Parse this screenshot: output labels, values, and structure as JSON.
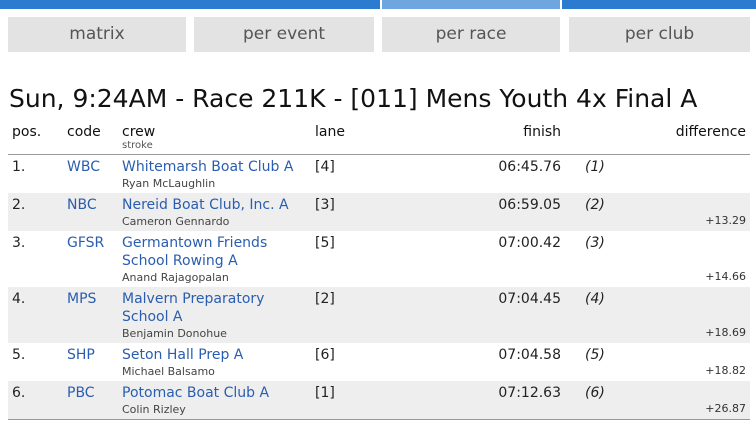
{
  "tabs": [
    "matrix",
    "per event",
    "per race",
    "per club"
  ],
  "title": "Sun, 9:24AM - Race 211K - [011] Mens Youth 4x Final A",
  "table": {
    "columns": {
      "pos": "pos.",
      "code": "code",
      "crew": "crew",
      "stroke": "stroke",
      "lane": "lane",
      "finish": "finish",
      "difference": "difference"
    },
    "rows": [
      {
        "pos": "1.",
        "code": "WBC",
        "crew": "Whitemarsh Boat Club A",
        "stroke": "Ryan McLaughlin",
        "lane": "[4]",
        "finish": "06:45.76",
        "place": "(1)",
        "difference": null
      },
      {
        "pos": "2.",
        "code": "NBC",
        "crew": "Nereid Boat Club, Inc. A",
        "stroke": "Cameron Gennardo",
        "lane": "[3]",
        "finish": "06:59.05",
        "place": "(2)",
        "difference": "+13.29"
      },
      {
        "pos": "3.",
        "code": "GFSR",
        "crew": "Germantown Friends School Rowing A",
        "stroke": "Anand Rajagopalan",
        "lane": "[5]",
        "finish": "07:00.42",
        "place": "(3)",
        "difference": "+14.66"
      },
      {
        "pos": "4.",
        "code": "MPS",
        "crew": "Malvern Preparatory School A",
        "stroke": "Benjamin Donohue",
        "lane": "[2]",
        "finish": "07:04.45",
        "place": "(4)",
        "difference": "+18.69"
      },
      {
        "pos": "5.",
        "code": "SHP",
        "crew": "Seton Hall Prep A",
        "stroke": "Michael Balsamo",
        "lane": "[6]",
        "finish": "07:04.58",
        "place": "(5)",
        "difference": "+18.82"
      },
      {
        "pos": "6.",
        "code": "PBC",
        "crew": "Potomac Boat Club A",
        "stroke": "Colin Rizley",
        "lane": "[1]",
        "finish": "07:12.63",
        "place": "(6)",
        "difference": "+26.87"
      }
    ]
  }
}
